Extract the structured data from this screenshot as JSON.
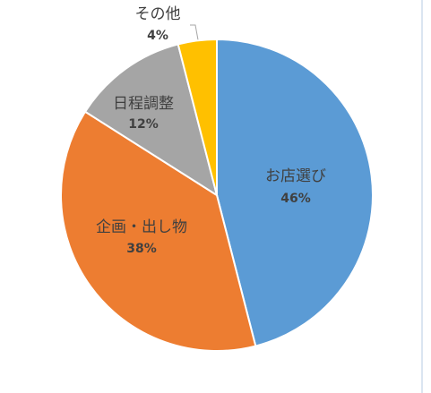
{
  "chart_data": {
    "type": "pie",
    "categories": [
      "お店選び",
      "企画・出し物",
      "日程調整",
      "その他"
    ],
    "values": [
      46,
      38,
      12,
      4
    ],
    "value_labels": [
      "46%",
      "38%",
      "12%",
      "4%"
    ],
    "colors": [
      "#5b9bd5",
      "#ed7d31",
      "#a5a5a5",
      "#ffc000"
    ]
  }
}
